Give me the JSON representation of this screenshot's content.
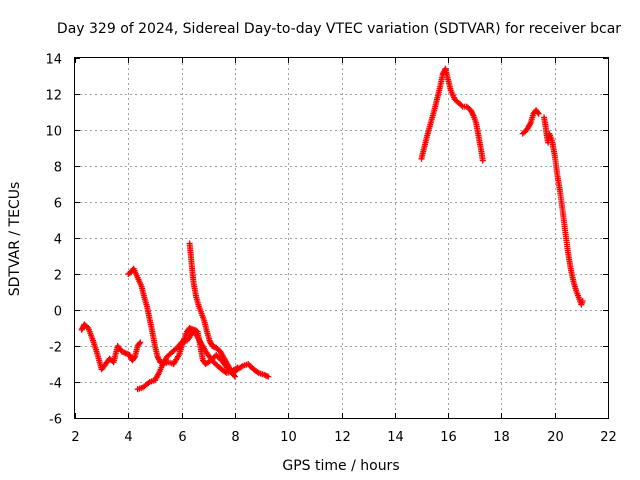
{
  "chart_data": {
    "type": "scatter",
    "title": "Day 329 of 2024, Sidereal Day-to-day VTEC variation (SDTVAR) for receiver bcar",
    "xlabel": "GPS time / hours",
    "ylabel": "SDTVAR / TECUs",
    "xlim": [
      2,
      22
    ],
    "ylim": [
      -6,
      14
    ],
    "xticks": [
      "2",
      "4",
      "6",
      "8",
      "10",
      "12",
      "14",
      "16",
      "18",
      "20",
      "22"
    ],
    "yticks": [
      "-6",
      "-4",
      "-2",
      "0",
      "2",
      "4",
      "6",
      "8",
      "10",
      "12",
      "14"
    ],
    "grid": true,
    "marker": "plus",
    "series": [
      {
        "name": "bcar",
        "color": "#ff0000",
        "segments": [
          [
            [
              2.25,
              -1.1
            ],
            [
              2.35,
              -0.8
            ],
            [
              2.5,
              -1.0
            ],
            [
              2.7,
              -1.8
            ],
            [
              2.85,
              -2.5
            ],
            [
              3.0,
              -3.3
            ],
            [
              3.15,
              -3.0
            ],
            [
              3.3,
              -2.7
            ],
            [
              3.45,
              -2.9
            ],
            [
              3.6,
              -2.0
            ],
            [
              3.75,
              -2.3
            ],
            [
              3.9,
              -2.4
            ],
            [
              4.05,
              -2.5
            ],
            [
              4.15,
              -2.8
            ],
            [
              4.25,
              -2.6
            ],
            [
              4.35,
              -2.0
            ],
            [
              4.45,
              -1.8
            ]
          ],
          [
            [
              4.0,
              2.0
            ],
            [
              4.1,
              2.1
            ],
            [
              4.2,
              2.3
            ],
            [
              4.35,
              1.8
            ],
            [
              4.5,
              1.3
            ],
            [
              4.6,
              0.7
            ],
            [
              4.7,
              0.2
            ],
            [
              4.8,
              -0.5
            ],
            [
              4.9,
              -1.2
            ],
            [
              5.0,
              -2.0
            ],
            [
              5.1,
              -2.6
            ],
            [
              5.2,
              -2.9
            ],
            [
              5.3,
              -3.0
            ],
            [
              5.5,
              -2.9
            ],
            [
              5.7,
              -3.0
            ],
            [
              5.9,
              -2.5
            ],
            [
              6.1,
              -1.6
            ],
            [
              6.2,
              -1.2
            ],
            [
              6.3,
              -1.0
            ],
            [
              6.45,
              -1.1
            ],
            [
              6.6,
              -1.5
            ],
            [
              6.75,
              -1.9
            ],
            [
              6.9,
              -2.3
            ],
            [
              7.05,
              -2.6
            ],
            [
              7.2,
              -2.9
            ],
            [
              7.35,
              -3.1
            ],
            [
              7.5,
              -3.3
            ],
            [
              7.7,
              -3.5
            ],
            [
              7.9,
              -3.4
            ],
            [
              8.1,
              -3.2
            ]
          ],
          [
            [
              4.35,
              -4.4
            ],
            [
              4.55,
              -4.3
            ],
            [
              4.8,
              -4.0
            ],
            [
              5.0,
              -3.9
            ],
            [
              5.15,
              -3.5
            ],
            [
              5.3,
              -3.0
            ],
            [
              5.45,
              -2.6
            ],
            [
              5.6,
              -2.4
            ],
            [
              5.75,
              -2.2
            ],
            [
              5.9,
              -2.0
            ],
            [
              6.0,
              -1.8
            ],
            [
              6.1,
              -1.7
            ],
            [
              6.2,
              -1.7
            ],
            [
              6.3,
              -1.5
            ],
            [
              6.4,
              -1.2
            ],
            [
              6.5,
              -1.1
            ],
            [
              6.6,
              -1.2
            ],
            [
              6.7,
              -2.0
            ],
            [
              6.8,
              -2.8
            ],
            [
              6.9,
              -3.0
            ],
            [
              7.1,
              -2.8
            ],
            [
              7.3,
              -2.5
            ],
            [
              7.5,
              -2.8
            ],
            [
              7.7,
              -3.2
            ],
            [
              7.9,
              -3.5
            ],
            [
              8.1,
              -3.3
            ],
            [
              8.3,
              -3.1
            ],
            [
              8.5,
              -3.0
            ],
            [
              8.7,
              -3.3
            ],
            [
              8.9,
              -3.5
            ],
            [
              9.1,
              -3.6
            ],
            [
              9.25,
              -3.7
            ]
          ],
          [
            [
              6.3,
              3.7
            ],
            [
              6.35,
              3.0
            ],
            [
              6.4,
              2.2
            ],
            [
              6.45,
              1.5
            ],
            [
              6.55,
              0.7
            ],
            [
              6.65,
              0.2
            ],
            [
              6.75,
              -0.2
            ],
            [
              6.85,
              -0.6
            ],
            [
              6.95,
              -1.2
            ],
            [
              7.05,
              -1.7
            ],
            [
              7.15,
              -2.0
            ],
            [
              7.3,
              -2.1
            ],
            [
              7.45,
              -2.3
            ],
            [
              7.6,
              -2.7
            ],
            [
              7.75,
              -3.1
            ],
            [
              7.9,
              -3.5
            ],
            [
              8.0,
              -3.7
            ]
          ],
          [
            [
              15.0,
              8.4
            ],
            [
              15.1,
              9.0
            ],
            [
              15.2,
              9.6
            ],
            [
              15.35,
              10.4
            ],
            [
              15.5,
              11.2
            ],
            [
              15.6,
              11.8
            ],
            [
              15.7,
              12.4
            ],
            [
              15.8,
              13.1
            ],
            [
              15.9,
              13.4
            ],
            [
              16.0,
              12.8
            ],
            [
              16.1,
              12.2
            ],
            [
              16.25,
              11.7
            ],
            [
              16.4,
              11.5
            ],
            [
              16.55,
              11.3
            ],
            [
              16.7,
              11.3
            ],
            [
              16.85,
              11.1
            ],
            [
              16.95,
              10.8
            ],
            [
              17.05,
              10.4
            ],
            [
              17.15,
              9.6
            ],
            [
              17.25,
              8.8
            ],
            [
              17.3,
              8.3
            ]
          ],
          [
            [
              18.8,
              9.8
            ],
            [
              18.95,
              10.0
            ],
            [
              19.1,
              10.4
            ],
            [
              19.2,
              10.9
            ],
            [
              19.3,
              11.1
            ],
            [
              19.4,
              10.9
            ]
          ],
          [
            [
              19.6,
              10.7
            ],
            [
              19.65,
              10.3
            ],
            [
              19.7,
              9.7
            ],
            [
              19.75,
              9.3
            ],
            [
              19.8,
              9.8
            ],
            [
              19.9,
              9.4
            ],
            [
              20.0,
              8.6
            ],
            [
              20.1,
              7.5
            ],
            [
              20.2,
              6.6
            ],
            [
              20.3,
              5.5
            ],
            [
              20.4,
              4.3
            ],
            [
              20.5,
              3.2
            ],
            [
              20.6,
              2.3
            ],
            [
              20.7,
              1.6
            ],
            [
              20.8,
              1.1
            ],
            [
              20.9,
              0.7
            ],
            [
              21.0,
              0.3
            ],
            [
              21.05,
              0.5
            ]
          ]
        ]
      }
    ]
  }
}
